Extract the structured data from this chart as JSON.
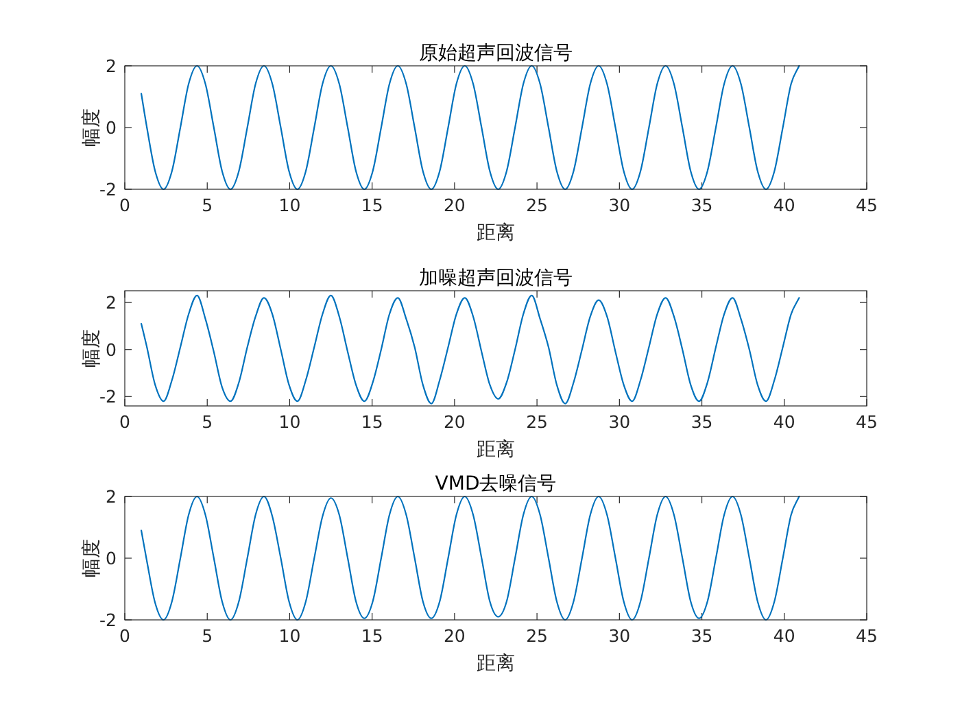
{
  "chart_data": [
    {
      "type": "line",
      "title": "原始超声回波信号",
      "xlabel": "距离",
      "ylabel": "幅度",
      "xlim": [
        0,
        45
      ],
      "xticks": [
        0,
        5,
        10,
        15,
        20,
        25,
        30,
        35,
        40,
        45
      ],
      "ylim": [
        -2,
        2
      ],
      "yticks": [
        -2,
        0,
        2
      ],
      "grid": false,
      "marker": "none",
      "line_style": "solid",
      "x": [
        1,
        1.34,
        1.84,
        2.35,
        2.86,
        3.37,
        3.87,
        4.38,
        4.89,
        5.4,
        5.9,
        6.41,
        6.92,
        7.43,
        7.93,
        8.44,
        8.95,
        9.46,
        9.96,
        10.47,
        10.98,
        11.49,
        11.99,
        12.5,
        13.01,
        13.52,
        14.02,
        14.53,
        15.04,
        15.55,
        16.05,
        16.56,
        17.07,
        17.58,
        18.08,
        18.59,
        19.1,
        19.61,
        20.11,
        20.62,
        21.13,
        21.64,
        22.14,
        22.65,
        23.16,
        23.67,
        24.17,
        24.68,
        25.19,
        25.7,
        26.2,
        26.71,
        27.22,
        27.73,
        28.23,
        28.74,
        29.25,
        29.76,
        30.26,
        30.77,
        31.28,
        31.79,
        32.29,
        32.8,
        33.31,
        33.82,
        34.32,
        34.83,
        35.34,
        35.85,
        36.35,
        36.86,
        37.37,
        37.88,
        38.38,
        38.89,
        39.4,
        39.91,
        40.41,
        40.9
      ],
      "series": [
        {
          "color": "#0072bd",
          "values": [
            1.1,
            0,
            -1.41,
            -2,
            -1.41,
            0,
            1.41,
            2,
            1.41,
            0,
            -1.41,
            -2,
            -1.41,
            0,
            1.41,
            2,
            1.41,
            0,
            -1.41,
            -2,
            -1.41,
            0,
            1.41,
            2,
            1.41,
            0,
            -1.41,
            -2,
            -1.41,
            0,
            1.41,
            2,
            1.41,
            0,
            -1.41,
            -2,
            -1.41,
            0,
            1.41,
            2,
            1.41,
            0,
            -1.41,
            -2,
            -1.41,
            0,
            1.41,
            2,
            1.41,
            0,
            -1.41,
            -2,
            -1.41,
            0,
            1.41,
            2,
            1.41,
            0,
            -1.41,
            -2,
            -1.41,
            0,
            1.41,
            2,
            1.41,
            0,
            -1.41,
            -2,
            -1.41,
            0,
            1.41,
            2,
            1.41,
            0,
            -1.41,
            -2,
            -1.41,
            0,
            1.41,
            2
          ]
        }
      ]
    },
    {
      "type": "line",
      "title": "加噪超声回波信号",
      "xlabel": "距离",
      "ylabel": "幅度",
      "xlim": [
        0,
        45
      ],
      "xticks": [
        0,
        5,
        10,
        15,
        20,
        25,
        30,
        35,
        40,
        45
      ],
      "ylim": [
        -2.4,
        2.5
      ],
      "yticks": [
        -2,
        0,
        2
      ],
      "grid": false,
      "marker": "none",
      "line_style": "solid",
      "x": [
        1,
        1.34,
        1.84,
        2.35,
        2.86,
        3.37,
        3.87,
        4.38,
        4.89,
        5.4,
        5.9,
        6.41,
        6.92,
        7.43,
        7.93,
        8.44,
        8.95,
        9.46,
        9.96,
        10.47,
        10.98,
        11.49,
        11.99,
        12.5,
        13.01,
        13.52,
        14.02,
        14.53,
        15.04,
        15.55,
        16.05,
        16.56,
        17.07,
        17.58,
        18.08,
        18.59,
        19.1,
        19.61,
        20.11,
        20.62,
        21.13,
        21.64,
        22.14,
        22.65,
        23.16,
        23.67,
        24.17,
        24.68,
        25.19,
        25.7,
        26.2,
        26.71,
        27.22,
        27.73,
        28.23,
        28.74,
        29.25,
        29.76,
        30.26,
        30.77,
        31.28,
        31.79,
        32.29,
        32.8,
        33.31,
        33.82,
        34.32,
        34.83,
        35.34,
        35.85,
        36.35,
        36.86,
        37.37,
        37.88,
        38.38,
        38.89,
        39.4,
        39.91,
        40.41,
        40.9
      ],
      "series": [
        {
          "color": "#0072bd",
          "values": [
            1.1,
            0.1,
            -1.5,
            -2.2,
            -1.3,
            0.1,
            1.5,
            2.3,
            1.3,
            -0.1,
            -1.6,
            -2.2,
            -1.4,
            0.1,
            1.4,
            2.2,
            1.5,
            0,
            -1.5,
            -2.2,
            -1.3,
            0.1,
            1.5,
            2.3,
            1.4,
            -0.1,
            -1.5,
            -2.2,
            -1.4,
            0,
            1.5,
            2.2,
            1.3,
            0.1,
            -1.5,
            -2.3,
            -1.3,
            0.1,
            1.5,
            2.2,
            1.4,
            -0.1,
            -1.5,
            -2.1,
            -1.4,
            0,
            1.5,
            2.3,
            1.3,
            0.1,
            -1.5,
            -2.3,
            -1.4,
            0,
            1.4,
            2.1,
            1.4,
            -0.1,
            -1.5,
            -2.2,
            -1.3,
            0.1,
            1.5,
            2.2,
            1.4,
            0,
            -1.5,
            -2.2,
            -1.4,
            0.1,
            1.5,
            2.2,
            1.3,
            0,
            -1.5,
            -2.2,
            -1.3,
            0.1,
            1.5,
            2.2
          ]
        }
      ]
    },
    {
      "type": "line",
      "title": "VMD去噪信号",
      "xlabel": "距离",
      "ylabel": "幅度",
      "xlim": [
        0,
        45
      ],
      "xticks": [
        0,
        5,
        10,
        15,
        20,
        25,
        30,
        35,
        40,
        45
      ],
      "ylim": [
        -2,
        2
      ],
      "yticks": [
        -2,
        0,
        2
      ],
      "grid": false,
      "marker": "none",
      "line_style": "solid",
      "x": [
        1,
        1.34,
        1.84,
        2.35,
        2.86,
        3.37,
        3.87,
        4.38,
        4.89,
        5.4,
        5.9,
        6.41,
        6.92,
        7.43,
        7.93,
        8.44,
        8.95,
        9.46,
        9.96,
        10.47,
        10.98,
        11.49,
        11.99,
        12.5,
        13.01,
        13.52,
        14.02,
        14.53,
        15.04,
        15.55,
        16.05,
        16.56,
        17.07,
        17.58,
        18.08,
        18.59,
        19.1,
        19.61,
        20.11,
        20.62,
        21.13,
        21.64,
        22.14,
        22.65,
        23.16,
        23.67,
        24.17,
        24.68,
        25.19,
        25.7,
        26.2,
        26.71,
        27.22,
        27.73,
        28.23,
        28.74,
        29.25,
        29.76,
        30.26,
        30.77,
        31.28,
        31.79,
        32.29,
        32.8,
        33.31,
        33.82,
        34.32,
        34.83,
        35.34,
        35.85,
        36.35,
        36.86,
        37.37,
        37.88,
        38.38,
        38.89,
        39.4,
        39.91,
        40.41,
        40.9
      ],
      "series": [
        {
          "color": "#0072bd",
          "values": [
            0.9,
            -0.1,
            -1.45,
            -2,
            -1.4,
            0,
            1.4,
            2,
            1.4,
            0,
            -1.4,
            -2,
            -1.4,
            0,
            1.4,
            2,
            1.35,
            0,
            -1.4,
            -2,
            -1.4,
            0,
            1.35,
            1.95,
            1.4,
            0,
            -1.4,
            -1.95,
            -1.4,
            0,
            1.4,
            2,
            1.4,
            0,
            -1.4,
            -1.95,
            -1.4,
            0,
            1.4,
            2,
            1.4,
            0,
            -1.4,
            -1.9,
            -1.4,
            0,
            1.4,
            2,
            1.4,
            0,
            -1.4,
            -2,
            -1.4,
            0,
            1.4,
            2,
            1.4,
            0,
            -1.4,
            -2,
            -1.4,
            0,
            1.4,
            2,
            1.4,
            0,
            -1.4,
            -1.95,
            -1.4,
            0,
            1.4,
            2,
            1.4,
            0,
            -1.4,
            -2,
            -1.4,
            0,
            1.4,
            2
          ]
        }
      ]
    }
  ]
}
